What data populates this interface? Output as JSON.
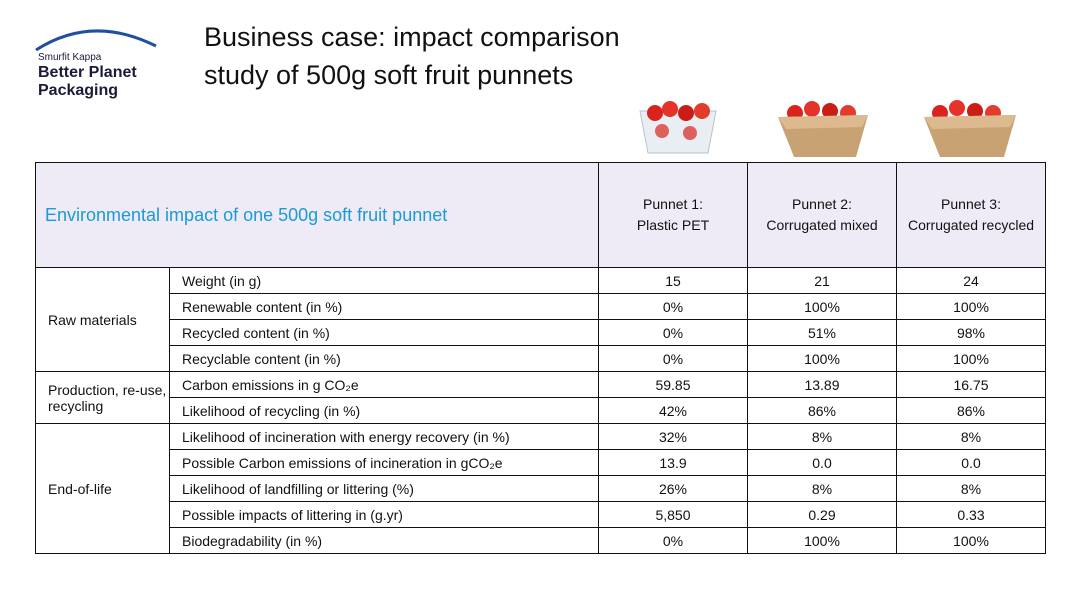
{
  "logo": {
    "brand": "Smurfit Kappa",
    "line1": "Better Planet",
    "line2": "Packaging"
  },
  "title": [
    "Business case: impact comparison",
    "study of 500g soft fruit punnets"
  ],
  "table": {
    "caption": "Environmental impact of one 500g soft fruit punnet",
    "columns": [
      [
        "Punnet 1:",
        "Plastic PET"
      ],
      [
        "Punnet 2:",
        "Corrugated mixed"
      ],
      [
        "Punnet 3:",
        "Corrugated recycled"
      ]
    ],
    "groups": [
      {
        "label": "Raw materials",
        "rows": [
          {
            "metric": "Weight (in g)",
            "values": [
              "15",
              "21",
              "24"
            ]
          },
          {
            "metric": "Renewable content (in %)",
            "values": [
              "0%",
              "100%",
              "100%"
            ]
          },
          {
            "metric": "Recycled content (in %)",
            "values": [
              "0%",
              "51%",
              "98%"
            ]
          },
          {
            "metric": "Recyclable content (in %)",
            "values": [
              "0%",
              "100%",
              "100%"
            ]
          }
        ]
      },
      {
        "label": "Production, re-use, recycling",
        "rows": [
          {
            "metric": "Carbon emissions in g CO₂e",
            "values": [
              "59.85",
              "13.89",
              "16.75"
            ]
          },
          {
            "metric": "Likelihood of recycling (in %)",
            "values": [
              "42%",
              "86%",
              "86%"
            ]
          }
        ]
      },
      {
        "label": "End-of-life",
        "rows": [
          {
            "metric": "Likelihood of incineration with energy recovery (in %)",
            "values": [
              "32%",
              "8%",
              "8%"
            ]
          },
          {
            "metric": "Possible Carbon emissions of incineration in gCO₂e",
            "values": [
              "13.9",
              "0.0",
              "0.0"
            ]
          },
          {
            "metric": "Likelihood of landfilling or littering (%)",
            "values": [
              "26%",
              "8%",
              "8%"
            ]
          },
          {
            "metric": "Possible impacts of littering in (g.yr)",
            "values": [
              "5,850",
              "0.29",
              "0.33"
            ]
          },
          {
            "metric": "Biodegradability (in %)",
            "values": [
              "0%",
              "100%",
              "100%"
            ]
          }
        ]
      }
    ]
  }
}
